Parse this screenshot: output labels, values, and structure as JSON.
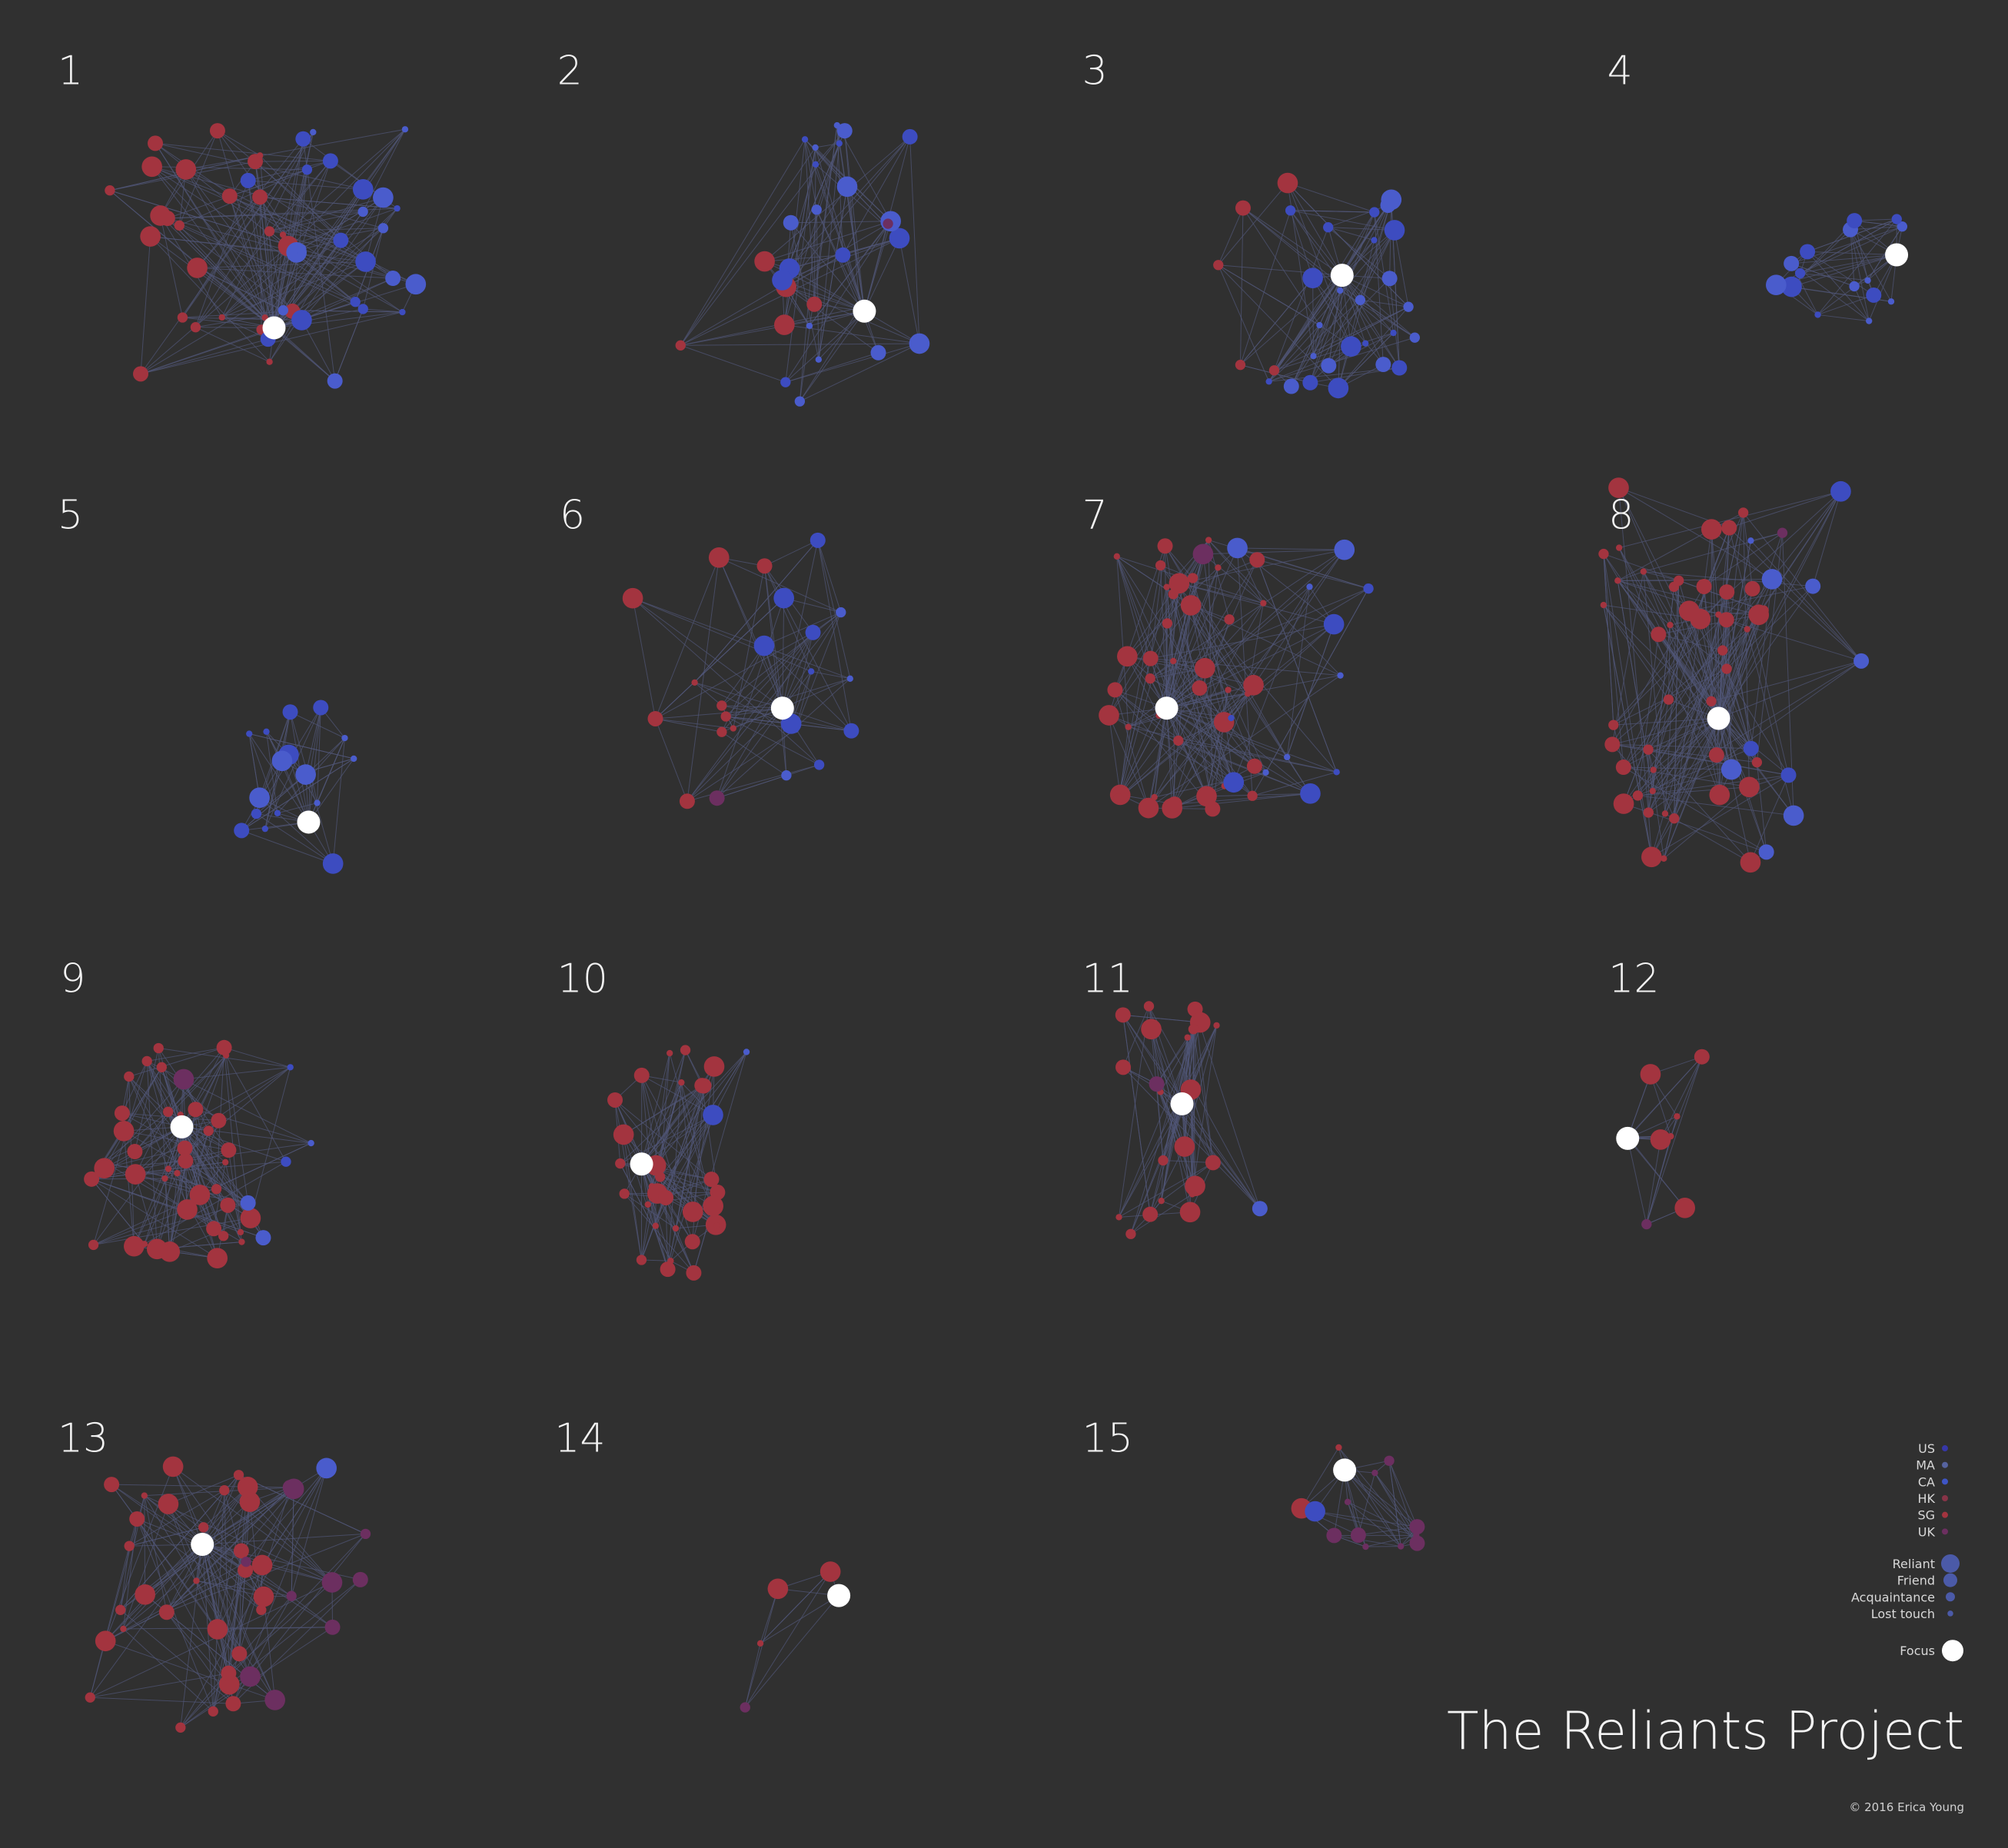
{
  "panels": [
    {
      "label": "1"
    },
    {
      "label": "2"
    },
    {
      "label": "3"
    },
    {
      "label": "4"
    },
    {
      "label": "5"
    },
    {
      "label": "6"
    },
    {
      "label": "7"
    },
    {
      "label": "8"
    },
    {
      "label": "9"
    },
    {
      "label": "10"
    },
    {
      "label": "11"
    },
    {
      "label": "12"
    },
    {
      "label": "13"
    },
    {
      "label": "14"
    },
    {
      "label": "15"
    }
  ],
  "legend": {
    "countries": [
      "US",
      "MA",
      "CA",
      "HK",
      "SG",
      "UK"
    ],
    "ties": [
      "Reliant",
      "Friend",
      "Acquaintance",
      "Lost touch"
    ],
    "focus": "Focus"
  },
  "title": "The Reliants Project",
  "credit": "© 2016 Erica Young"
}
